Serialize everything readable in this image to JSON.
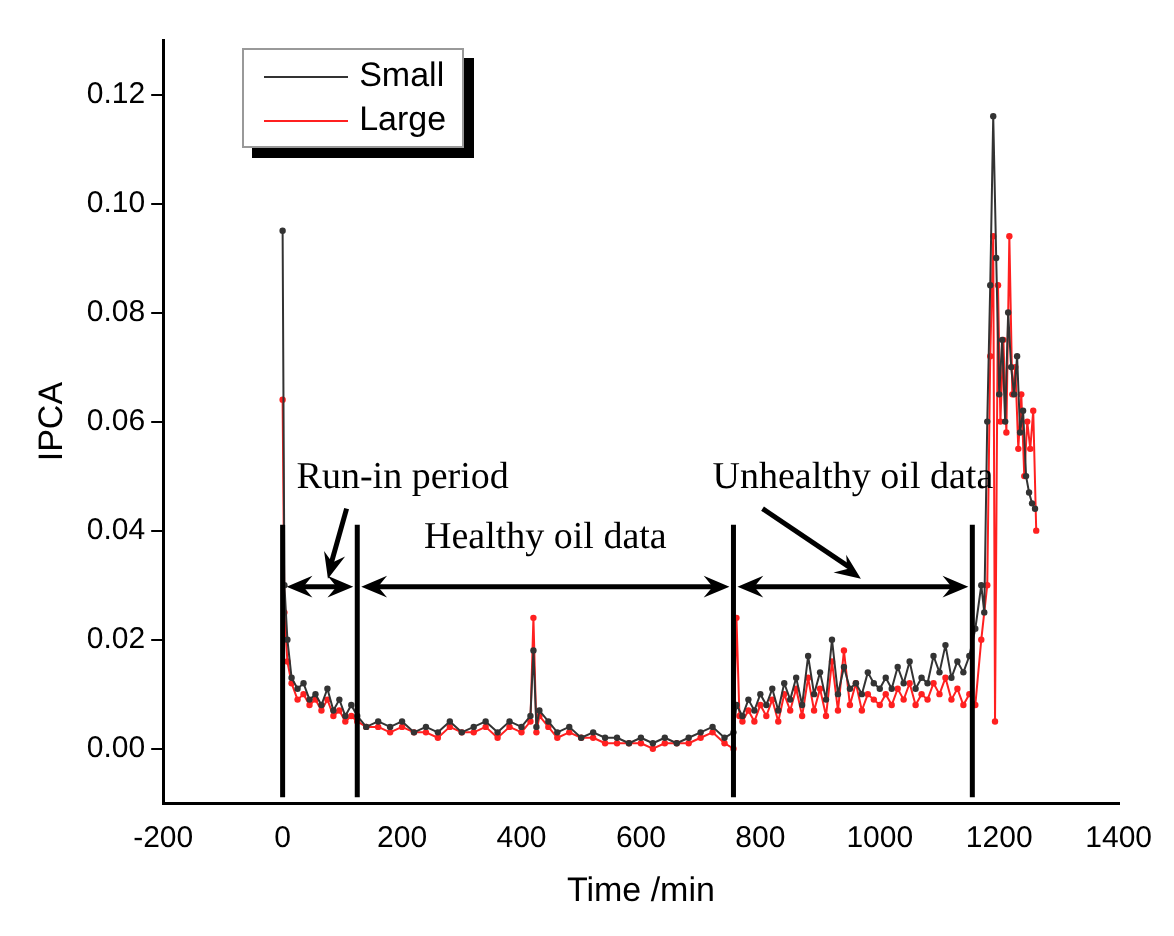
{
  "chart_data": {
    "type": "line",
    "xlabel": "Time /min",
    "ylabel": "IPCA",
    "xlim": [
      -200,
      1400
    ],
    "xticks": [
      -200,
      0,
      200,
      400,
      600,
      800,
      1000,
      1200,
      1400
    ],
    "ylim": [
      -0.01,
      0.13
    ],
    "yticks": [
      {
        "value": 0,
        "label": "0.00"
      },
      {
        "value": 0.02,
        "label": "0.02"
      },
      {
        "value": 0.04,
        "label": "0.04"
      },
      {
        "value": 0.06,
        "label": "0.06"
      },
      {
        "value": 0.08,
        "label": "0.08"
      },
      {
        "value": 0.1,
        "label": "0.10"
      },
      {
        "value": 0.12,
        "label": "0.12"
      }
    ],
    "grid": false,
    "legend": "top left",
    "marker": "circle",
    "line_style": "solid",
    "series": [
      {
        "name": "Small",
        "color": "#333333",
        "x": [
          0,
          3,
          8,
          15,
          25,
          35,
          45,
          55,
          65,
          75,
          85,
          95,
          105,
          115,
          125,
          140,
          160,
          180,
          200,
          220,
          240,
          260,
          280,
          300,
          320,
          340,
          360,
          380,
          400,
          415,
          420,
          425,
          430,
          445,
          460,
          480,
          500,
          520,
          540,
          560,
          580,
          600,
          620,
          640,
          660,
          680,
          700,
          720,
          740,
          755,
          760,
          770,
          780,
          790,
          800,
          810,
          820,
          830,
          840,
          850,
          860,
          870,
          880,
          890,
          900,
          910,
          920,
          930,
          940,
          950,
          960,
          970,
          980,
          990,
          1000,
          1010,
          1020,
          1030,
          1040,
          1050,
          1060,
          1070,
          1080,
          1090,
          1100,
          1110,
          1120,
          1130,
          1140,
          1150,
          1160,
          1170,
          1175,
          1180,
          1185,
          1190,
          1195,
          1200,
          1205,
          1210,
          1215,
          1220,
          1225,
          1230,
          1235,
          1240,
          1245,
          1250,
          1255,
          1260
        ],
        "values": [
          0.095,
          0.03,
          0.02,
          0.013,
          0.011,
          0.012,
          0.009,
          0.01,
          0.008,
          0.011,
          0.007,
          0.009,
          0.006,
          0.008,
          0.006,
          0.004,
          0.005,
          0.004,
          0.005,
          0.003,
          0.004,
          0.003,
          0.005,
          0.003,
          0.004,
          0.005,
          0.003,
          0.005,
          0.004,
          0.006,
          0.018,
          0.004,
          0.007,
          0.005,
          0.003,
          0.004,
          0.002,
          0.003,
          0.002,
          0.002,
          0.001,
          0.002,
          0.001,
          0.002,
          0.001,
          0.002,
          0.003,
          0.004,
          0.002,
          0.003,
          0.008,
          0.006,
          0.009,
          0.007,
          0.01,
          0.008,
          0.011,
          0.007,
          0.012,
          0.009,
          0.013,
          0.008,
          0.017,
          0.01,
          0.014,
          0.009,
          0.02,
          0.01,
          0.015,
          0.011,
          0.012,
          0.01,
          0.014,
          0.012,
          0.011,
          0.013,
          0.011,
          0.015,
          0.012,
          0.016,
          0.011,
          0.013,
          0.012,
          0.017,
          0.014,
          0.019,
          0.013,
          0.016,
          0.014,
          0.017,
          0.022,
          0.03,
          0.025,
          0.06,
          0.085,
          0.116,
          0.09,
          0.065,
          0.075,
          0.06,
          0.08,
          0.07,
          0.065,
          0.072,
          0.058,
          0.062,
          0.05,
          0.047,
          0.045,
          0.044
        ]
      },
      {
        "name": "Large",
        "color": "#ff2020",
        "x": [
          0,
          3,
          8,
          15,
          25,
          35,
          45,
          55,
          65,
          75,
          85,
          95,
          105,
          115,
          125,
          140,
          160,
          180,
          200,
          220,
          240,
          260,
          280,
          300,
          320,
          340,
          360,
          380,
          400,
          415,
          420,
          425,
          430,
          445,
          460,
          480,
          500,
          520,
          540,
          560,
          580,
          600,
          620,
          640,
          660,
          680,
          700,
          720,
          740,
          755,
          760,
          765,
          770,
          780,
          790,
          800,
          810,
          820,
          830,
          840,
          850,
          860,
          870,
          880,
          890,
          900,
          910,
          920,
          930,
          940,
          950,
          960,
          970,
          980,
          990,
          1000,
          1010,
          1020,
          1030,
          1040,
          1050,
          1060,
          1070,
          1080,
          1090,
          1100,
          1110,
          1120,
          1130,
          1140,
          1150,
          1160,
          1170,
          1180,
          1185,
          1190,
          1193,
          1198,
          1202,
          1207,
          1212,
          1217,
          1222,
          1227,
          1232,
          1237,
          1242,
          1247,
          1252,
          1257,
          1262
        ],
        "values": [
          0.064,
          0.025,
          0.016,
          0.012,
          0.009,
          0.01,
          0.008,
          0.009,
          0.007,
          0.009,
          0.006,
          0.007,
          0.005,
          0.006,
          0.005,
          0.004,
          0.004,
          0.003,
          0.004,
          0.003,
          0.003,
          0.002,
          0.004,
          0.003,
          0.003,
          0.004,
          0.002,
          0.004,
          0.003,
          0.005,
          0.024,
          0.003,
          0.006,
          0.004,
          0.002,
          0.003,
          0.002,
          0.002,
          0.001,
          0.001,
          0.001,
          0.001,
          0.0,
          0.001,
          0.001,
          0.001,
          0.002,
          0.003,
          0.001,
          0.0,
          0.024,
          0.006,
          0.005,
          0.007,
          0.005,
          0.008,
          0.006,
          0.009,
          0.005,
          0.01,
          0.007,
          0.011,
          0.006,
          0.013,
          0.007,
          0.011,
          0.006,
          0.016,
          0.007,
          0.018,
          0.008,
          0.012,
          0.007,
          0.01,
          0.009,
          0.008,
          0.01,
          0.008,
          0.011,
          0.009,
          0.012,
          0.008,
          0.01,
          0.009,
          0.012,
          0.01,
          0.013,
          0.009,
          0.011,
          0.008,
          0.01,
          0.008,
          0.02,
          0.03,
          0.072,
          0.094,
          0.005,
          0.085,
          0.06,
          0.075,
          0.058,
          0.094,
          0.065,
          0.07,
          0.055,
          0.065,
          0.05,
          0.06,
          0.055,
          0.062,
          0.04
        ]
      }
    ],
    "ref_lines": [
      {
        "axis": "x",
        "value": 0
      },
      {
        "axis": "x",
        "value": 125
      },
      {
        "axis": "x",
        "value": 755
      },
      {
        "axis": "x",
        "value": 1155
      }
    ],
    "annotations": [
      "Run-in period",
      "Healthy oil data",
      "Unhealthy oil data"
    ]
  }
}
